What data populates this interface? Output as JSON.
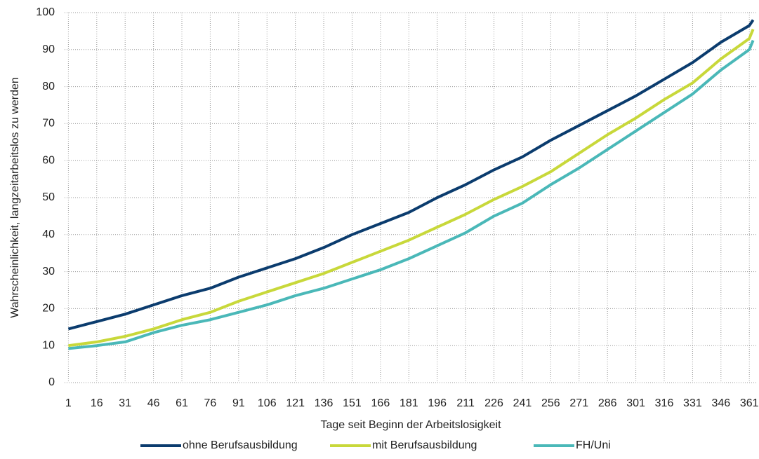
{
  "chart_data": {
    "type": "line",
    "x_label": "Tage seit Beginn der Arbeitslosigkeit",
    "y_label": "Wahrscheinlichkeit, langzeitarbeitslos zu werden",
    "x": [
      1,
      16,
      31,
      46,
      61,
      76,
      91,
      106,
      121,
      136,
      151,
      166,
      181,
      196,
      211,
      226,
      241,
      256,
      271,
      286,
      301,
      316,
      331,
      346,
      361,
      363
    ],
    "series": [
      {
        "name": "ohne Berufsausbildung",
        "color": "#0b3c6e",
        "values": [
          14.5,
          16.5,
          18.5,
          21,
          23.5,
          25.5,
          28.5,
          31,
          33.5,
          36.5,
          40,
          43,
          46,
          50,
          53.5,
          57.5,
          61,
          65.5,
          69.5,
          73.5,
          77.5,
          82,
          86.5,
          92,
          96.5,
          98
        ]
      },
      {
        "name": "mit Berufsausbildung",
        "color": "#c8d83a",
        "values": [
          10,
          11,
          12.5,
          14.5,
          17,
          19,
          22,
          24.5,
          27,
          29.5,
          32.5,
          35.5,
          38.5,
          42,
          45.5,
          49.5,
          53,
          57,
          62,
          67,
          71.5,
          76.5,
          81,
          87.5,
          93,
          95.5
        ]
      },
      {
        "name": "FH/Uni",
        "color": "#4ab8b8",
        "values": [
          9.2,
          10,
          11,
          13.5,
          15.5,
          17,
          19,
          21,
          23.5,
          25.5,
          28,
          30.5,
          33.5,
          37,
          40.5,
          45,
          48.5,
          53.5,
          58,
          63,
          68,
          73,
          78,
          84.5,
          90,
          92.5
        ]
      }
    ],
    "xlim": [
      -1,
      365
    ],
    "xticks": [
      1,
      16,
      31,
      46,
      61,
      76,
      91,
      106,
      121,
      136,
      151,
      166,
      181,
      196,
      211,
      226,
      241,
      256,
      271,
      286,
      301,
      316,
      331,
      346,
      361
    ],
    "ylim": [
      0,
      100
    ],
    "yticks": [
      0,
      10,
      20,
      30,
      40,
      50,
      60,
      70,
      80,
      90,
      100
    ],
    "grid": true,
    "legend": "bottom"
  }
}
